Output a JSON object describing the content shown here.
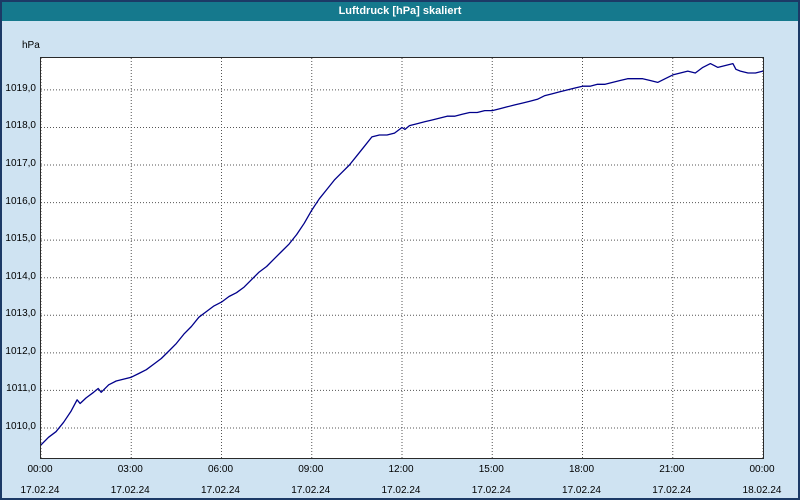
{
  "window": {
    "title": "Luftdruck [hPa] skaliert",
    "titlebar_color": "#15798d",
    "background_color": "#cfe3f2",
    "border_color": "#1c3a66"
  },
  "chart_data": {
    "type": "line",
    "title": "Luftdruck [hPa] skaliert",
    "ylabel": "hPa",
    "line_color": "#00008b",
    "grid": true,
    "legend": "none",
    "xlim": [
      0,
      24
    ],
    "ylim": [
      1009.2,
      1019.85
    ],
    "xticks": [
      0,
      3,
      6,
      9,
      12,
      15,
      18,
      21,
      24
    ],
    "xtick_labels": [
      "00:00",
      "03:00",
      "06:00",
      "09:00",
      "12:00",
      "15:00",
      "18:00",
      "21:00",
      "00:00"
    ],
    "xtick_dates": [
      "17.02.24",
      "17.02.24",
      "17.02.24",
      "17.02.24",
      "17.02.24",
      "17.02.24",
      "17.02.24",
      "17.02.24",
      "18.02.24"
    ],
    "yticks": [
      1010,
      1011,
      1012,
      1013,
      1014,
      1015,
      1016,
      1017,
      1018,
      1019
    ],
    "ytick_labels": [
      "1010,0",
      "1011,0",
      "1012,0",
      "1013,0",
      "1014,0",
      "1015,0",
      "1016,0",
      "1017,0",
      "1018,0",
      "1019,0"
    ],
    "series": [
      {
        "name": "Luftdruck [hPa]",
        "x": [
          0,
          0.25,
          0.5,
          0.75,
          1,
          1.2,
          1.3,
          1.5,
          1.75,
          1.9,
          2,
          2.25,
          2.5,
          2.75,
          3,
          3.25,
          3.5,
          3.75,
          4,
          4.25,
          4.5,
          4.75,
          5,
          5.25,
          5.5,
          5.75,
          6,
          6.25,
          6.5,
          6.75,
          7,
          7.25,
          7.5,
          7.75,
          8,
          8.25,
          8.5,
          8.75,
          9,
          9.25,
          9.5,
          9.75,
          10,
          10.25,
          10.5,
          10.75,
          11,
          11.25,
          11.5,
          11.75,
          12,
          12.1,
          12.25,
          12.5,
          12.75,
          13,
          13.25,
          13.5,
          13.75,
          14,
          14.25,
          14.5,
          14.75,
          15,
          15.25,
          15.5,
          15.75,
          16,
          16.25,
          16.5,
          16.75,
          17,
          17.25,
          17.5,
          17.75,
          18,
          18.25,
          18.5,
          18.75,
          19,
          19.25,
          19.5,
          19.75,
          20,
          20.25,
          20.5,
          20.75,
          21,
          21.25,
          21.5,
          21.75,
          22,
          22.25,
          22.5,
          22.75,
          23,
          23.1,
          23.25,
          23.5,
          23.75,
          24
        ],
        "y": [
          1009.55,
          1009.75,
          1009.9,
          1010.15,
          1010.45,
          1010.75,
          1010.65,
          1010.8,
          1010.95,
          1011.05,
          1010.95,
          1011.15,
          1011.25,
          1011.3,
          1011.35,
          1011.45,
          1011.55,
          1011.7,
          1011.85,
          1012.05,
          1012.25,
          1012.5,
          1012.7,
          1012.95,
          1013.1,
          1013.25,
          1013.35,
          1013.5,
          1013.6,
          1013.75,
          1013.95,
          1014.15,
          1014.3,
          1014.5,
          1014.7,
          1014.9,
          1015.15,
          1015.45,
          1015.8,
          1016.1,
          1016.35,
          1016.6,
          1016.8,
          1017.0,
          1017.25,
          1017.5,
          1017.75,
          1017.8,
          1017.8,
          1017.85,
          1018.0,
          1017.95,
          1018.05,
          1018.1,
          1018.15,
          1018.2,
          1018.25,
          1018.3,
          1018.3,
          1018.35,
          1018.4,
          1018.4,
          1018.45,
          1018.45,
          1018.5,
          1018.55,
          1018.6,
          1018.65,
          1018.7,
          1018.75,
          1018.85,
          1018.9,
          1018.95,
          1019.0,
          1019.05,
          1019.1,
          1019.1,
          1019.15,
          1019.15,
          1019.2,
          1019.25,
          1019.3,
          1019.3,
          1019.3,
          1019.25,
          1019.2,
          1019.3,
          1019.4,
          1019.45,
          1019.5,
          1019.45,
          1019.6,
          1019.7,
          1019.6,
          1019.65,
          1019.7,
          1019.55,
          1019.5,
          1019.45,
          1019.45,
          1019.5
        ]
      }
    ]
  }
}
